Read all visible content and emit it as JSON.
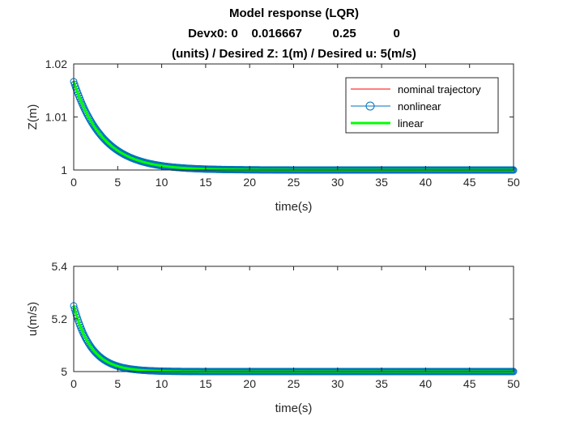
{
  "title_lines": [
    "Model response (LQR)",
    "Devx0: 0    0.016667         0.25           0",
    "(units) / Desired Z: 1(m) / Desired u: 5(m/s)"
  ],
  "colors": {
    "nominal": "#ff0000",
    "nonlinear": "#0072bd",
    "linear": "#00ff00",
    "axes": "#262626"
  },
  "legend": {
    "location": "northeast of top subplot",
    "entries": [
      "nominal trajectory",
      "nonlinear",
      "linear"
    ]
  },
  "chart_data": [
    {
      "type": "line",
      "xlabel": "time(s)",
      "ylabel": "Z(m)",
      "xlim": [
        0,
        50
      ],
      "ylim": [
        1,
        1.02
      ],
      "xticks": [
        0,
        5,
        10,
        15,
        20,
        25,
        30,
        35,
        40,
        45,
        50
      ],
      "xtick_labels": [
        "0",
        "5",
        "10",
        "15",
        "20",
        "25",
        "30",
        "35",
        "40",
        "45",
        "50"
      ],
      "yticks": [
        1,
        1.01,
        1.02
      ],
      "ytick_labels": [
        "1",
        "1.01",
        "1.02"
      ],
      "grid": false,
      "series": [
        {
          "name": "nominal trajectory",
          "style": "line",
          "x": [
            0,
            50
          ],
          "y": [
            1,
            1
          ]
        },
        {
          "name": "nonlinear",
          "style": "line-circles",
          "x0": 0,
          "y0": 1.016667,
          "final": 1,
          "tau": 3.3,
          "x_end": 50
        },
        {
          "name": "linear",
          "style": "thick-line",
          "x0": 0,
          "y0": 1.016667,
          "final": 1,
          "tau": 3.3,
          "x_end": 50
        }
      ]
    },
    {
      "type": "line",
      "xlabel": "time(s)",
      "ylabel": "u(m/s)",
      "xlim": [
        0,
        50
      ],
      "ylim": [
        5,
        5.4
      ],
      "xticks": [
        0,
        5,
        10,
        15,
        20,
        25,
        30,
        35,
        40,
        45,
        50
      ],
      "xtick_labels": [
        "0",
        "5",
        "10",
        "15",
        "20",
        "25",
        "30",
        "35",
        "40",
        "45",
        "50"
      ],
      "yticks": [
        5,
        5.2,
        5.4
      ],
      "ytick_labels": [
        "5",
        "5.2",
        "5.4"
      ],
      "grid": false,
      "series": [
        {
          "name": "nominal trajectory",
          "style": "line",
          "x": [
            0,
            10
          ],
          "y": [
            5,
            5
          ]
        },
        {
          "name": "nonlinear",
          "style": "line-circles",
          "x0": 0,
          "y0": 5.25,
          "final": 5,
          "tau": 2.0,
          "x_end": 50
        },
        {
          "name": "linear",
          "style": "thick-line",
          "x0": 0,
          "y0": 5.25,
          "final": 5,
          "tau": 2.0,
          "x_end": 50
        }
      ]
    }
  ]
}
